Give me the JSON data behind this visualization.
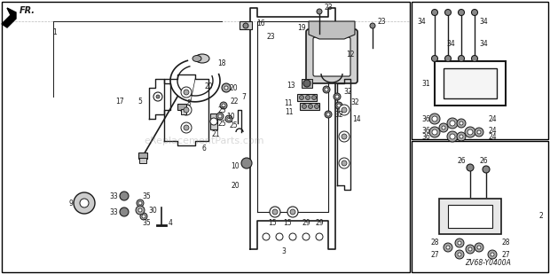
{
  "diagram_code": "ZV68-Y0400A",
  "watermark": "eReplacementParts.com",
  "fr_label": "FR.",
  "background_color": "#ffffff",
  "border_color": "#000000",
  "line_color": "#1a1a1a",
  "figsize": [
    6.2,
    3.09
  ],
  "dpi": 100
}
